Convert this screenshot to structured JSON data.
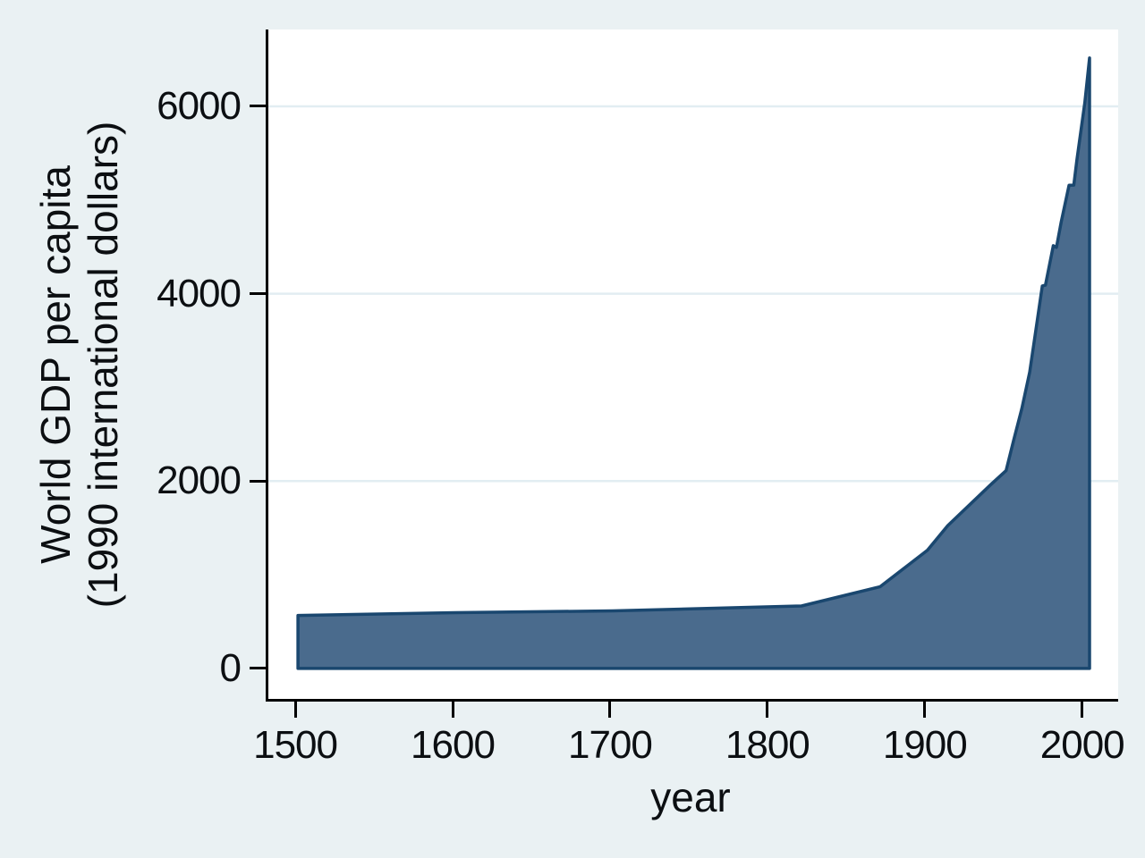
{
  "figure": {
    "background_color": "#eaf1f3",
    "plot_background_color": "#ffffff",
    "axis_line_color": "#000000",
    "grid_color": "#e2edf2",
    "text_color": "#0c0f12"
  },
  "chart_data": {
    "type": "area",
    "title": "",
    "xlabel": "year",
    "ylabel_lines": [
      "World GDP per capita",
      "(1990 international dollars)"
    ],
    "x_ticks": [
      1500,
      1600,
      1700,
      1800,
      1900,
      2000
    ],
    "y_ticks": [
      0,
      2000,
      4000,
      6000
    ],
    "xlim": [
      1481.2,
      2021.2
    ],
    "ylim": [
      -325,
      6820
    ],
    "grid": "horizontal-at-nonzero-y-ticks",
    "legend": "none",
    "series": [
      {
        "name": "World GDP per capita (1990 international dollars)",
        "fill_color": "#4a6b8d",
        "line_color": "#1a476f",
        "baseline": 0,
        "points": [
          [
            1500,
            566
          ],
          [
            1600,
            596
          ],
          [
            1700,
            615
          ],
          [
            1820,
            667
          ],
          [
            1870,
            873
          ],
          [
            1900,
            1262
          ],
          [
            1913,
            1526
          ],
          [
            1940,
            1958
          ],
          [
            1950,
            2111
          ],
          [
            1955,
            2448
          ],
          [
            1960,
            2773
          ],
          [
            1965,
            3163
          ],
          [
            1970,
            3736
          ],
          [
            1973,
            4083
          ],
          [
            1975,
            4091
          ],
          [
            1980,
            4512
          ],
          [
            1982,
            4494
          ],
          [
            1985,
            4764
          ],
          [
            1990,
            5157
          ],
          [
            1993,
            5159
          ],
          [
            1995,
            5431
          ],
          [
            2000,
            6038
          ],
          [
            2003,
            6516
          ]
        ]
      }
    ]
  }
}
